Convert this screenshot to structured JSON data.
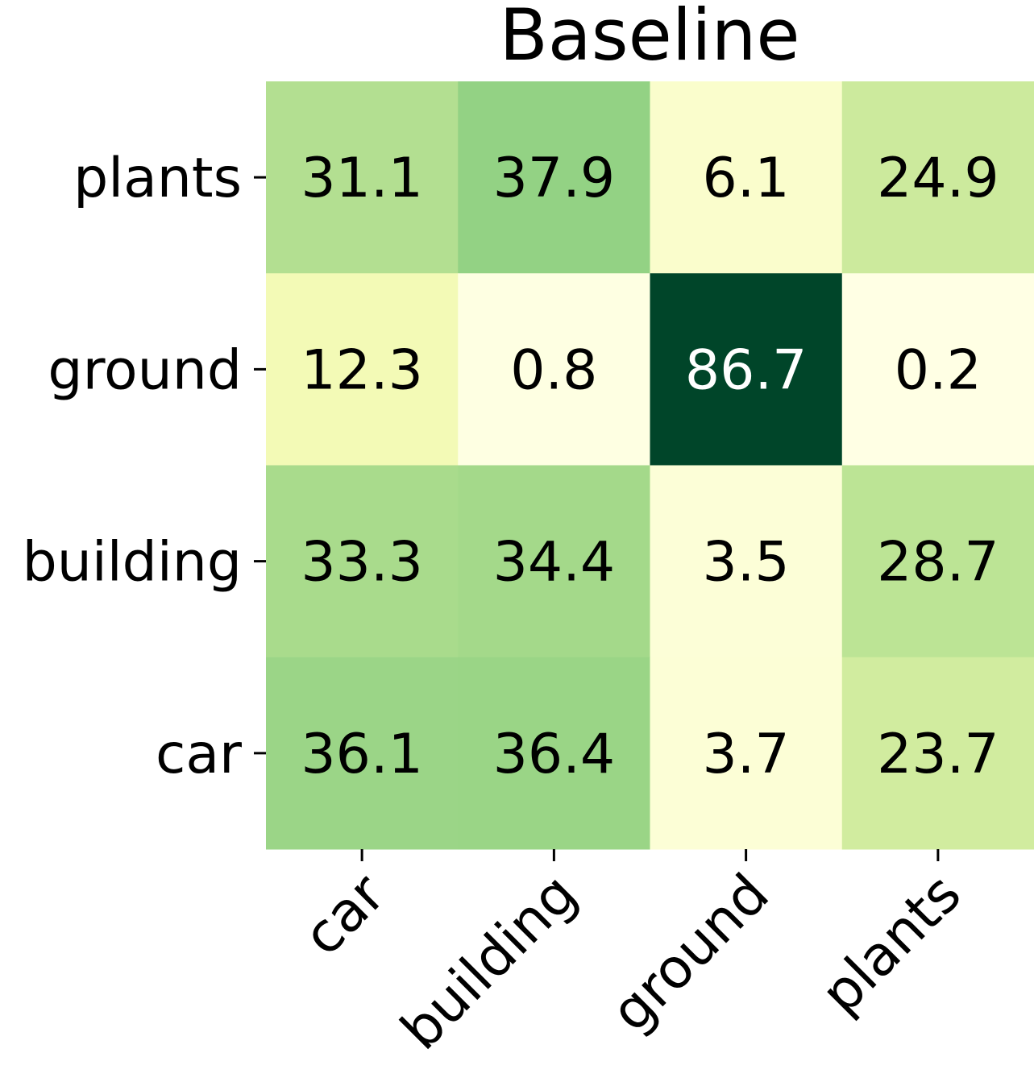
{
  "chart_data": {
    "type": "heatmap",
    "title": "Baseline",
    "xlabel": "",
    "ylabel": "",
    "x_categories": [
      "car",
      "building",
      "ground",
      "plants"
    ],
    "y_categories": [
      "plants",
      "ground",
      "building",
      "car"
    ],
    "values": [
      [
        31.1,
        37.9,
        6.1,
        24.9
      ],
      [
        12.3,
        0.8,
        86.7,
        0.2
      ],
      [
        33.3,
        34.4,
        3.5,
        28.7
      ],
      [
        36.1,
        36.4,
        3.7,
        23.7
      ]
    ],
    "value_range": [
      0,
      86.7
    ],
    "colormap": "YlGn",
    "colorbar": false,
    "grid": false
  }
}
